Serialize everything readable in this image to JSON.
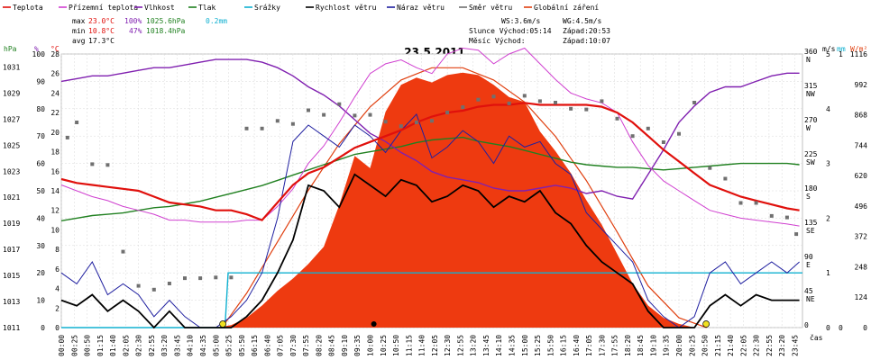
{
  "chart_data": {
    "type": "line",
    "title": "23.5.2011",
    "legend": [
      {
        "name": "Teplota",
        "color": "#e0100c"
      },
      {
        "name": "Přízemní teplota",
        "color": "#d040d0"
      },
      {
        "name": "Vlhkost",
        "color": "#8020b0"
      },
      {
        "name": "Tlak",
        "color": "#208020"
      },
      {
        "name": "Srážky",
        "color": "#10b0d0"
      },
      {
        "name": "Rychlost větru",
        "color": "#000000"
      },
      {
        "name": "Náraz větru",
        "color": "#2020a0"
      },
      {
        "name": "Směr větru",
        "color": "#707070"
      },
      {
        "name": "Globální záření",
        "color": "#e04010"
      }
    ],
    "stats": {
      "max_label": "max",
      "max_temp": "23.0°C",
      "max_hum": "100%",
      "max_press": "1025.6hPa",
      "max_rain": "0.2mm",
      "min_label": "min",
      "min_temp": "10.8°C",
      "min_hum": "47%",
      "min_press": "1018.4hPa",
      "avg_label": "avg",
      "avg_temp": "17.3°C",
      "ws": "WS:3.6m/s",
      "wg": "WG:4.5m/s",
      "sun_rise": "Slunce Východ:05:14",
      "sun_set": "Západ:20:53",
      "moon_rise": "Měsíc  Východ:",
      "moon_set": "Západ:10:07"
    },
    "axes": {
      "hpa_unit": "hPa",
      "hum_unit": "%",
      "temp_unit": "°C",
      "ms_unit": "m/s",
      "mm_unit": "mm",
      "wm2_unit": "W/m²",
      "x_unit": "čas",
      "hpa_ticks": [
        "1031",
        "1029",
        "1027",
        "1025",
        "1023",
        "1021",
        "1019",
        "1017",
        "1015",
        "1013",
        "1011"
      ],
      "hum_ticks": [
        "100",
        "90",
        "80",
        "70",
        "60",
        "50",
        "40",
        "30",
        "20",
        "10",
        "0"
      ],
      "temp_ticks": [
        "28",
        "26",
        "24",
        "22",
        "20",
        "18",
        "16",
        "14",
        "12",
        "10",
        "8",
        "6",
        "4",
        "2",
        "0"
      ],
      "dir_ticks": [
        "360\nN",
        "315\nNW",
        "270\nW",
        "225\nSW",
        "180\nS",
        "135\nSE",
        "90\nE",
        "45\nNE",
        "0"
      ],
      "ms_ticks": [
        "5",
        "4",
        "3",
        "2",
        "1",
        "0"
      ],
      "mm_ticks": [
        "1",
        "0"
      ],
      "wm2_ticks": [
        "1116",
        "992",
        "868",
        "744",
        "620",
        "496",
        "372",
        "248",
        "124",
        "0"
      ],
      "x_ticks": [
        "00:00",
        "00:25",
        "00:50",
        "01:15",
        "01:40",
        "02:05",
        "02:30",
        "02:55",
        "03:20",
        "03:45",
        "04:10",
        "04:35",
        "05:00",
        "05:25",
        "05:50",
        "06:15",
        "06:40",
        "07:05",
        "07:30",
        "07:55",
        "08:20",
        "08:45",
        "09:10",
        "09:35",
        "10:00",
        "10:25",
        "10:50",
        "11:15",
        "11:40",
        "12:05",
        "12:30",
        "12:55",
        "13:20",
        "13:45",
        "14:10",
        "14:35",
        "15:00",
        "15:25",
        "15:50",
        "16:15",
        "16:40",
        "17:05",
        "17:30",
        "17:55",
        "18:20",
        "18:45",
        "19:10",
        "19:35",
        "20:00",
        "20:25",
        "20:50",
        "21:15",
        "21:40",
        "22:05",
        "22:30",
        "22:55",
        "23:20",
        "23:45"
      ]
    },
    "series": [
      {
        "name": "Teplota",
        "unit": "°C",
        "x": [
          0,
          0.5,
          1,
          1.5,
          2,
          2.5,
          3,
          3.5,
          4,
          4.5,
          5,
          5.5,
          6,
          6.5,
          7,
          7.5,
          8,
          8.5,
          9,
          9.5,
          10,
          10.5,
          11,
          11.5,
          12,
          12.5,
          13,
          13.5,
          14,
          14.5,
          15,
          15.5,
          16,
          16.5,
          17,
          17.5,
          18,
          18.5,
          19,
          19.5,
          20,
          20.5,
          21,
          21.5,
          22,
          22.5,
          23,
          23.5,
          23.9
        ],
        "values": [
          15.2,
          14.8,
          14.6,
          14.4,
          14.2,
          14.0,
          13.4,
          12.8,
          12.6,
          12.4,
          12.0,
          12.0,
          11.6,
          11.0,
          12.8,
          14.6,
          15.8,
          16.4,
          17.4,
          18.4,
          19.0,
          19.6,
          20.2,
          21.0,
          21.6,
          22.0,
          22.2,
          22.6,
          22.8,
          22.8,
          23.0,
          22.8,
          22.8,
          22.8,
          22.8,
          22.6,
          22.0,
          21.0,
          19.6,
          18.2,
          17.0,
          15.8,
          14.6,
          14.0,
          13.4,
          13.0,
          12.6,
          12.2,
          12.0
        ]
      },
      {
        "name": "Přízemní teplota",
        "unit": "°C",
        "x": [
          0,
          0.5,
          1,
          1.5,
          2,
          2.5,
          3,
          3.5,
          4,
          4.5,
          5,
          5.5,
          6,
          6.5,
          7,
          7.5,
          8,
          8.5,
          9,
          9.5,
          10,
          10.5,
          11,
          11.5,
          12,
          12.5,
          13,
          13.5,
          14,
          14.5,
          15,
          15.5,
          16,
          16.5,
          17,
          17.5,
          18,
          18.5,
          19,
          19.5,
          20,
          20.5,
          21,
          21.5,
          22,
          22.5,
          23,
          23.5,
          23.9
        ],
        "values": [
          14.6,
          14.0,
          13.4,
          13.0,
          12.4,
          12.0,
          11.6,
          11.0,
          11.0,
          10.8,
          10.8,
          10.8,
          11.0,
          11.0,
          12.4,
          14.2,
          16.8,
          18.6,
          21.0,
          23.6,
          26.0,
          27.0,
          27.4,
          26.6,
          26.0,
          28.0,
          28.6,
          28.4,
          27.0,
          28.0,
          28.6,
          27.0,
          25.4,
          24.0,
          23.4,
          23.0,
          22.0,
          19.0,
          16.6,
          15.0,
          14.0,
          13.0,
          12.0,
          11.6,
          11.2,
          11.0,
          10.8,
          10.6,
          10.4
        ]
      },
      {
        "name": "Vlhkost",
        "unit": "%",
        "x": [
          0,
          0.5,
          1,
          1.5,
          2,
          2.5,
          3,
          3.5,
          4,
          4.5,
          5,
          5.5,
          6,
          6.5,
          7,
          7.5,
          8,
          8.5,
          9,
          9.5,
          10,
          10.5,
          11,
          11.5,
          12,
          12.5,
          13,
          13.5,
          14,
          14.5,
          15,
          15.5,
          16,
          16.5,
          17,
          17.5,
          18,
          18.5,
          19,
          19.5,
          20,
          20.5,
          21,
          21.5,
          22,
          22.5,
          23,
          23.5,
          23.9
        ],
        "values": [
          90,
          91,
          92,
          92,
          93,
          94,
          95,
          95,
          96,
          97,
          98,
          98,
          98,
          97,
          95,
          92,
          88,
          85,
          81,
          76,
          71,
          68,
          64,
          61,
          57,
          55,
          54,
          53,
          51,
          50,
          50,
          51,
          52,
          51,
          49,
          50,
          48,
          47,
          56,
          65,
          75,
          81,
          86,
          88,
          88,
          90,
          92,
          93,
          93
        ]
      },
      {
        "name": "Tlak",
        "unit": "hPa",
        "x": [
          0,
          0.5,
          1,
          1.5,
          2,
          2.5,
          3,
          3.5,
          4,
          4.5,
          5,
          5.5,
          6,
          6.5,
          7,
          7.5,
          8,
          8.5,
          9,
          9.5,
          10,
          10.5,
          11,
          11.5,
          12,
          12.5,
          13,
          13.5,
          14,
          14.5,
          15,
          15.5,
          16,
          16.5,
          17,
          17.5,
          18,
          18.5,
          19,
          19.5,
          20,
          20.5,
          21,
          21.5,
          22,
          22.5,
          23,
          23.5,
          23.9
        ],
        "values": [
          1019.2,
          1019.4,
          1019.6,
          1019.7,
          1019.8,
          1020.0,
          1020.2,
          1020.3,
          1020.5,
          1020.7,
          1021.0,
          1021.3,
          1021.6,
          1021.9,
          1022.3,
          1022.7,
          1023.1,
          1023.5,
          1023.9,
          1024.3,
          1024.5,
          1024.7,
          1024.9,
          1025.2,
          1025.4,
          1025.5,
          1025.6,
          1025.3,
          1025.1,
          1024.9,
          1024.6,
          1024.3,
          1024.0,
          1023.7,
          1023.5,
          1023.4,
          1023.3,
          1023.3,
          1023.2,
          1023.1,
          1023.2,
          1023.3,
          1023.4,
          1023.5,
          1023.6,
          1023.6,
          1023.6,
          1023.6,
          1023.5
        ]
      },
      {
        "name": "Srážky",
        "unit": "mm",
        "x": [
          0,
          5.3,
          5.4,
          24.0
        ],
        "values": [
          0,
          0,
          0.2,
          0.2
        ]
      },
      {
        "name": "Rychlost větru",
        "unit": "m/s",
        "x": [
          0,
          0.5,
          1,
          1.5,
          2,
          2.5,
          3,
          3.5,
          4,
          4.5,
          5,
          5.5,
          6,
          6.5,
          7,
          7.5,
          8,
          8.5,
          9,
          9.5,
          10,
          10.5,
          11,
          11.5,
          12,
          12.5,
          13,
          13.5,
          14,
          14.5,
          15,
          15.5,
          16,
          16.5,
          17,
          17.5,
          18,
          18.5,
          19,
          19.5,
          20,
          20.5,
          21,
          21.5,
          22,
          22.5,
          23,
          23.5,
          23.9
        ],
        "values": [
          0.5,
          0.4,
          0.6,
          0.3,
          0.5,
          0.3,
          0,
          0.3,
          0,
          0,
          0,
          0,
          0.2,
          0.5,
          1.0,
          1.6,
          2.6,
          2.5,
          2.2,
          2.8,
          2.6,
          2.4,
          2.7,
          2.6,
          2.3,
          2.4,
          2.6,
          2.5,
          2.2,
          2.4,
          2.3,
          2.5,
          2.1,
          1.9,
          1.5,
          1.2,
          1.0,
          0.8,
          0.3,
          0,
          0,
          0,
          0.4,
          0.6,
          0.4,
          0.6,
          0.5,
          0.5,
          0.5
        ]
      },
      {
        "name": "Náraz větru",
        "unit": "m/s",
        "x": [
          0,
          0.5,
          1,
          1.5,
          2,
          2.5,
          3,
          3.5,
          4,
          4.5,
          5,
          5.5,
          6,
          6.5,
          7,
          7.5,
          8,
          8.5,
          9,
          9.5,
          10,
          10.5,
          11,
          11.5,
          12,
          12.5,
          13,
          13.5,
          14,
          14.5,
          15,
          15.5,
          16,
          16.5,
          17,
          17.5,
          18,
          18.5,
          19,
          19.5,
          20,
          20.5,
          21,
          21.5,
          22,
          22.5,
          23,
          23.5,
          23.9
        ],
        "values": [
          1.0,
          0.8,
          1.2,
          0.6,
          0.8,
          0.6,
          0.2,
          0.5,
          0.2,
          0,
          0,
          0.2,
          0.5,
          1.0,
          2.0,
          3.4,
          3.7,
          3.5,
          3.3,
          3.7,
          3.5,
          3.2,
          3.6,
          3.9,
          3.1,
          3.3,
          3.6,
          3.4,
          3.0,
          3.5,
          3.3,
          3.4,
          3.0,
          2.8,
          2.1,
          1.8,
          1.5,
          1.2,
          0.5,
          0.2,
          0,
          0.2,
          1.0,
          1.2,
          0.8,
          1.0,
          1.2,
          1.0,
          1.2
        ]
      },
      {
        "name": "Směr větru",
        "unit": "°",
        "x": [
          0.2,
          0.5,
          1,
          1.5,
          2,
          2.5,
          3,
          3.5,
          4,
          4.5,
          5,
          5.5,
          6,
          6.5,
          7,
          7.5,
          8,
          8.5,
          9,
          9.5,
          10,
          10.5,
          11,
          11.5,
          12,
          12.5,
          13,
          13.5,
          14,
          14.5,
          15,
          15.5,
          16,
          16.5,
          17,
          17.5,
          18,
          18.5,
          19,
          19.5,
          20,
          20.5,
          21,
          21.5,
          22,
          22.5,
          23,
          23.5,
          23.8
        ],
        "values": [
          250,
          270,
          215,
          214,
          100,
          55,
          50,
          58,
          65,
          65,
          66,
          66,
          262,
          262,
          272,
          268,
          286,
          280,
          294,
          279,
          280,
          271,
          265,
          270,
          272,
          283,
          290,
          300,
          304,
          295,
          305,
          298,
          296,
          288,
          287,
          298,
          275,
          252,
          262,
          244,
          255,
          296,
          210,
          196,
          164,
          164,
          147,
          145,
          123
        ]
      },
      {
        "name": "Globální záření",
        "unit": "W/m²",
        "x": [
          0,
          5.0,
          5.5,
          6,
          6.5,
          7,
          7.5,
          8,
          8.5,
          9,
          9.5,
          10,
          10.5,
          11,
          11.5,
          12,
          12.5,
          13,
          13.5,
          14,
          14.5,
          15,
          15.5,
          16,
          16.5,
          17,
          17.5,
          18,
          18.5,
          19,
          19.5,
          20,
          20.5,
          21,
          24
        ],
        "values": [
          0,
          0,
          10,
          40,
          90,
          150,
          200,
          260,
          330,
          500,
          700,
          650,
          880,
          990,
          1020,
          1000,
          1030,
          1040,
          1030,
          990,
          940,
          920,
          800,
          720,
          630,
          520,
          420,
          300,
          180,
          90,
          40,
          15,
          0,
          0,
          0
        ]
      },
      {
        "name": "Globální záření (teoretické)",
        "unit": "W/m²",
        "x": [
          5.2,
          6,
          7,
          8,
          9,
          10,
          11,
          12,
          13,
          14,
          15,
          16,
          17,
          18,
          19,
          20,
          20.9
        ],
        "values": [
          0,
          140,
          350,
          560,
          750,
          900,
          1010,
          1060,
          1060,
          1010,
          920,
          780,
          600,
          390,
          170,
          40,
          0
        ]
      }
    ],
    "sun_markers_hours": [
      5.23,
      20.88
    ],
    "moon_marker_hour": 10.12,
    "ylim": {
      "temp": [
        0,
        28
      ],
      "hum": [
        0,
        100
      ],
      "hpa": [
        1011,
        1032
      ],
      "ms": [
        0,
        5
      ],
      "mm": [
        0,
        1
      ],
      "wm2": [
        0,
        1116
      ],
      "dir": [
        0,
        360
      ]
    },
    "xlim": [
      0,
      24
    ],
    "grid": true,
    "legend_position": "top"
  }
}
